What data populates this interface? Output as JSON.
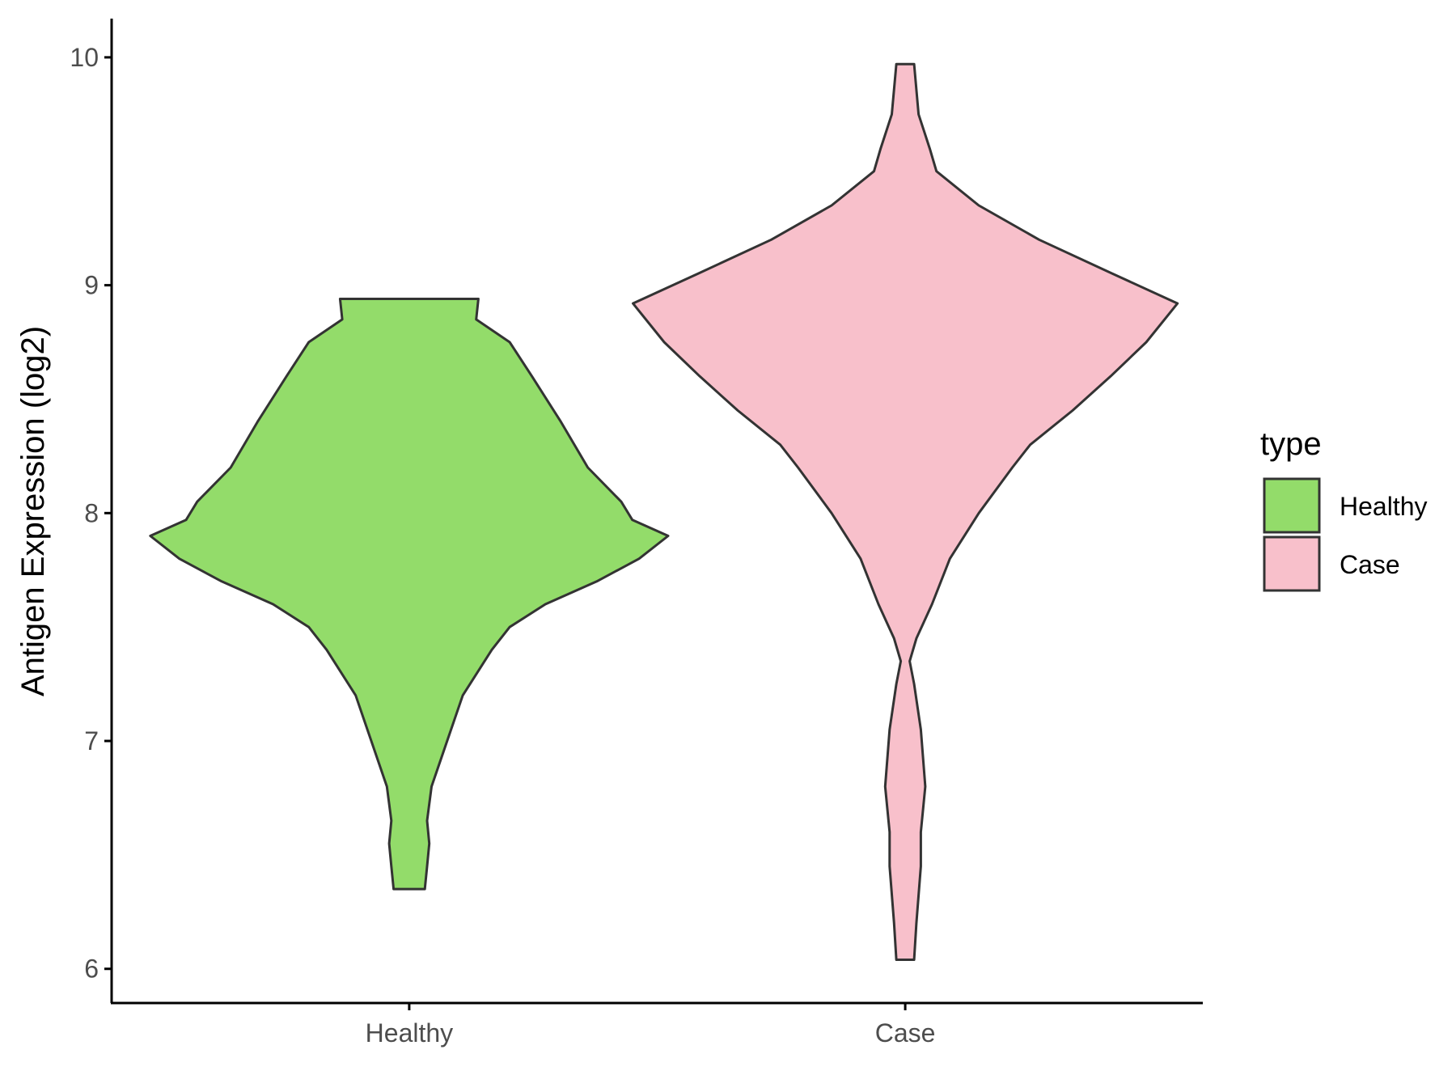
{
  "chart_data": {
    "type": "violin",
    "ylabel": "Antigen Expression (log2)",
    "xlabel": "",
    "ylim": [
      5.85,
      10.17
    ],
    "yticks": [
      6,
      7,
      8,
      9,
      10
    ],
    "categories": [
      "Healthy",
      "Case"
    ],
    "legend": {
      "title": "type",
      "position": "right",
      "entries": [
        "Healthy",
        "Case"
      ]
    },
    "grid": false,
    "colors": {
      "Healthy": "#93dc6a",
      "Case": "#f8c0cb",
      "outline": "#333333",
      "axis": "#000000",
      "tick_text": "#4d4d4d"
    },
    "series": [
      {
        "name": "Healthy",
        "min": 6.35,
        "max": 8.94,
        "density": [
          [
            6.35,
            0.07
          ],
          [
            6.45,
            0.08
          ],
          [
            6.55,
            0.09
          ],
          [
            6.65,
            0.08
          ],
          [
            6.8,
            0.1
          ],
          [
            7.0,
            0.17
          ],
          [
            7.2,
            0.24
          ],
          [
            7.4,
            0.37
          ],
          [
            7.5,
            0.45
          ],
          [
            7.6,
            0.61
          ],
          [
            7.7,
            0.84
          ],
          [
            7.8,
            1.03
          ],
          [
            7.9,
            1.16
          ],
          [
            7.97,
            1.0
          ],
          [
            8.05,
            0.95
          ],
          [
            8.2,
            0.8
          ],
          [
            8.4,
            0.68
          ],
          [
            8.6,
            0.55
          ],
          [
            8.75,
            0.45
          ],
          [
            8.85,
            0.3
          ],
          [
            8.94,
            0.31
          ]
        ]
      },
      {
        "name": "Case",
        "min": 6.04,
        "max": 9.97,
        "density": [
          [
            6.04,
            0.04
          ],
          [
            6.2,
            0.05
          ],
          [
            6.45,
            0.07
          ],
          [
            6.6,
            0.07
          ],
          [
            6.8,
            0.09
          ],
          [
            7.05,
            0.07
          ],
          [
            7.25,
            0.04
          ],
          [
            7.35,
            0.02
          ],
          [
            7.45,
            0.05
          ],
          [
            7.6,
            0.12
          ],
          [
            7.8,
            0.2
          ],
          [
            8.0,
            0.33
          ],
          [
            8.2,
            0.48
          ],
          [
            8.3,
            0.56
          ],
          [
            8.45,
            0.75
          ],
          [
            8.6,
            0.92
          ],
          [
            8.75,
            1.08
          ],
          [
            8.92,
            1.22
          ],
          [
            9.05,
            0.93
          ],
          [
            9.2,
            0.6
          ],
          [
            9.35,
            0.33
          ],
          [
            9.5,
            0.14
          ],
          [
            9.6,
            0.11
          ],
          [
            9.75,
            0.06
          ],
          [
            9.97,
            0.04
          ]
        ]
      }
    ]
  }
}
